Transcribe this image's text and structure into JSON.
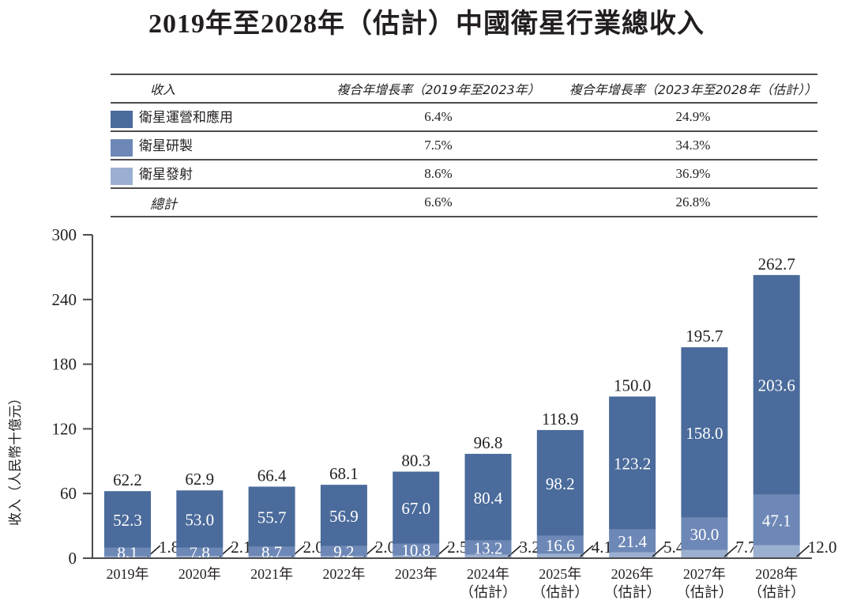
{
  "title": "2019年至2028年（估計）中國衛星行業總收入",
  "table": {
    "headers": [
      "收入",
      "複合年增長率（2019年至2023年）",
      "複合年增長率（2023年至2028年（估計））"
    ],
    "rows": [
      {
        "label": "衛星運營和應用",
        "cagr1": "6.4%",
        "cagr2": "24.9%",
        "color": "#4a6b9b"
      },
      {
        "label": "衛星研製",
        "cagr1": "7.5%",
        "cagr2": "34.3%",
        "color": "#6d88b6"
      },
      {
        "label": "衛星發射",
        "cagr1": "8.6%",
        "cagr2": "36.9%",
        "color": "#9bafd0"
      },
      {
        "label": "總計",
        "cagr1": "6.6%",
        "cagr2": "26.8%"
      }
    ]
  },
  "chart_data": {
    "type": "bar",
    "stacked": true,
    "title": "2019年至2028年（估計）中國衛星行業總收入",
    "ylabel": "收入（人民幣十億元）",
    "xlabel": "",
    "ylim": [
      0,
      300
    ],
    "yticks": [
      0,
      60,
      120,
      180,
      240,
      300
    ],
    "categories": [
      "2019年",
      "2020年",
      "2021年",
      "2022年",
      "2023年",
      "2024年\n（估計）",
      "2025年\n（估計）",
      "2026年\n（估計）",
      "2027年\n（估計）",
      "2028年\n（估計）"
    ],
    "series": [
      {
        "name": "衛星發射",
        "color": "#9bafd0",
        "values": [
          1.8,
          2.1,
          2.0,
          2.0,
          2.5,
          3.2,
          4.1,
          5.4,
          7.7,
          12.0
        ]
      },
      {
        "name": "衛星研製",
        "color": "#6d88b6",
        "values": [
          8.1,
          7.8,
          8.7,
          9.2,
          10.8,
          13.2,
          16.6,
          21.4,
          30.0,
          47.1
        ]
      },
      {
        "name": "衛星運營和應用",
        "color": "#4a6b9b",
        "values": [
          52.3,
          53.0,
          55.7,
          56.9,
          67.0,
          80.4,
          98.2,
          123.2,
          158.0,
          203.6
        ]
      }
    ],
    "totals": [
      62.2,
      62.9,
      66.4,
      68.1,
      80.3,
      96.8,
      118.9,
      150.0,
      195.7,
      262.7
    ],
    "grid": false,
    "legend": "top-table"
  }
}
